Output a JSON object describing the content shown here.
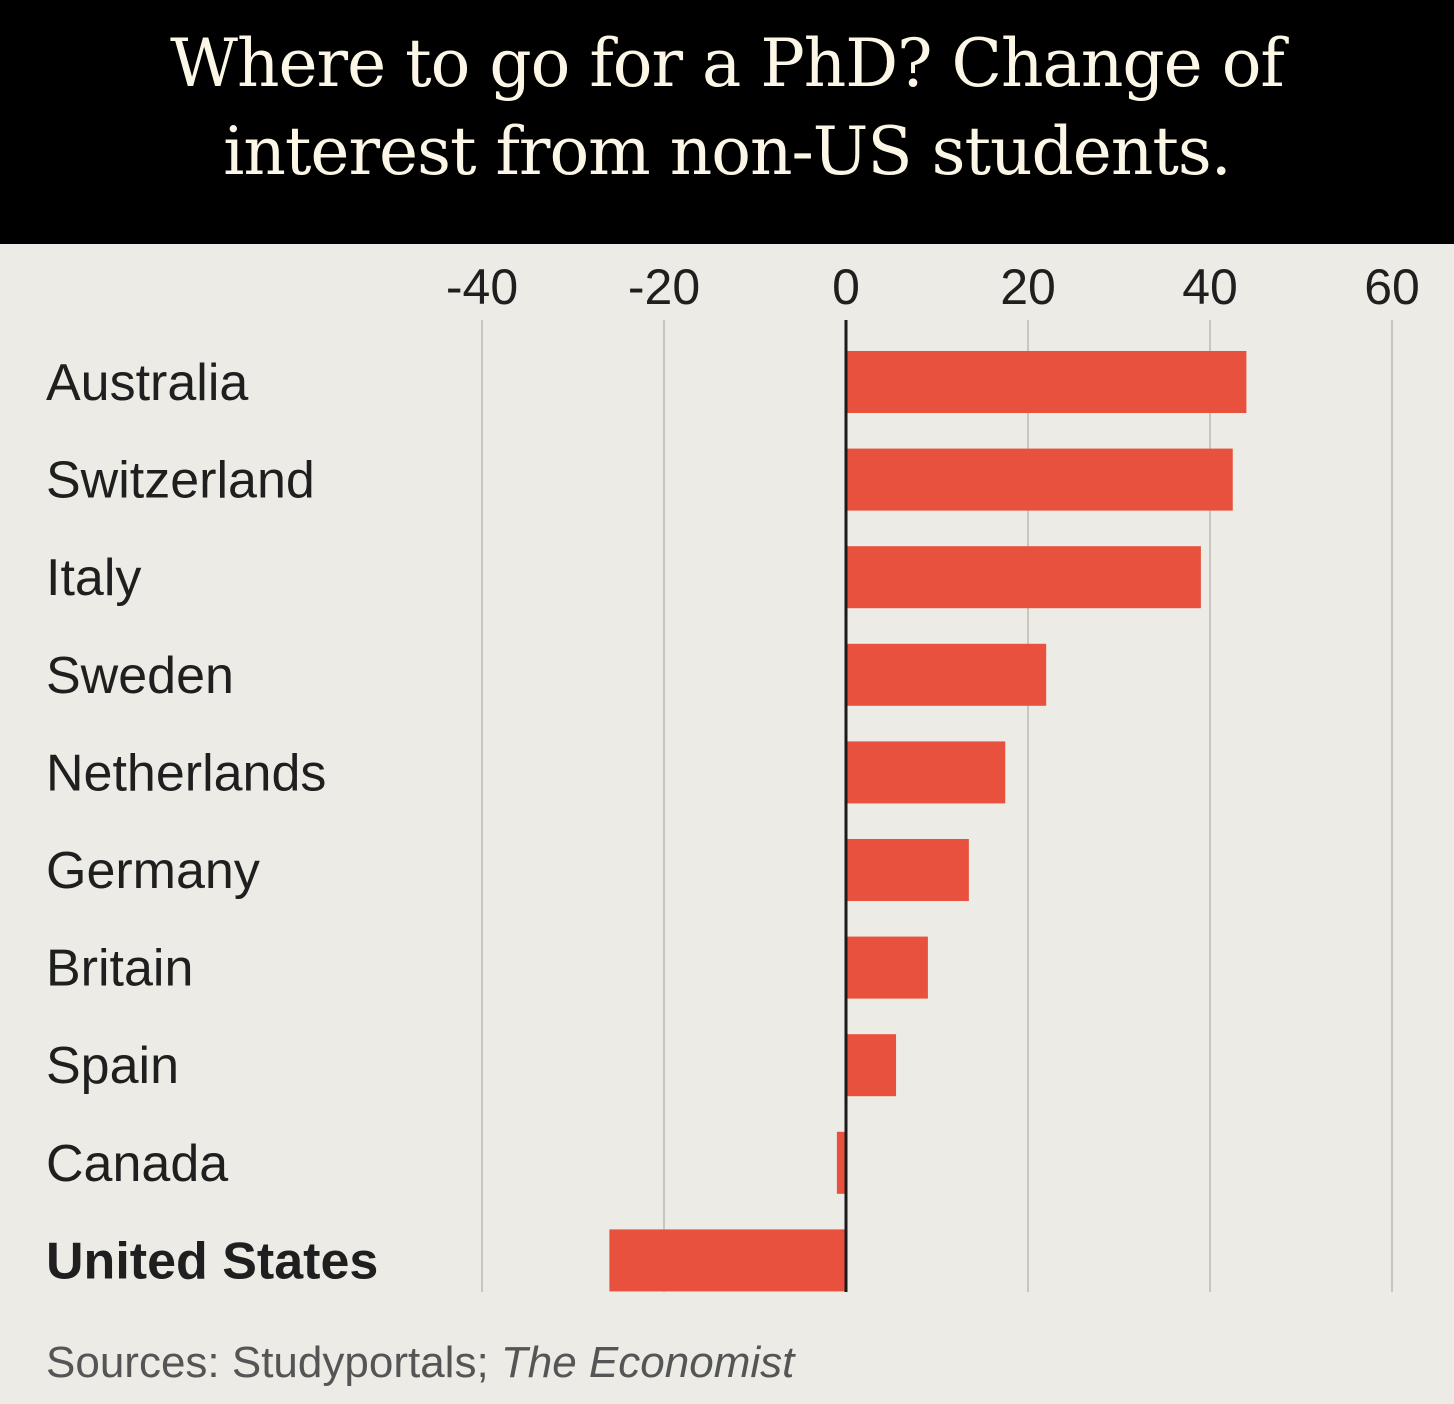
{
  "title_lines": [
    "Where to go for a PhD? Change of",
    "interest from non-US students."
  ],
  "source": {
    "prefix": "Sources: Studyportals; ",
    "italic": "The Economist"
  },
  "colors": {
    "bar": "#e8513d",
    "header_bg": "#000000",
    "background": "#ecebe5",
    "gridline": "#c8c6bf",
    "zero_line": "#1a1a1a"
  },
  "chart_data": {
    "type": "bar",
    "orientation": "horizontal",
    "title": "Where to go for a PhD? Change of interest from non-US students.",
    "categories": [
      "Australia",
      "Switzerland",
      "Italy",
      "Sweden",
      "Netherlands",
      "Germany",
      "Britain",
      "Spain",
      "Canada",
      "United States"
    ],
    "values": [
      44,
      42.5,
      39,
      22,
      17.5,
      13.5,
      9,
      5.5,
      -1,
      -26
    ],
    "highlight": "United States",
    "xticks": [
      -40,
      -20,
      0,
      20,
      40,
      60
    ],
    "xtick_labels": [
      "-40",
      "-20",
      "0",
      "20",
      "40",
      "60"
    ],
    "xlim": [
      -40,
      60
    ],
    "xlabel": "",
    "ylabel": "",
    "grid": true,
    "axis_position": "top"
  }
}
